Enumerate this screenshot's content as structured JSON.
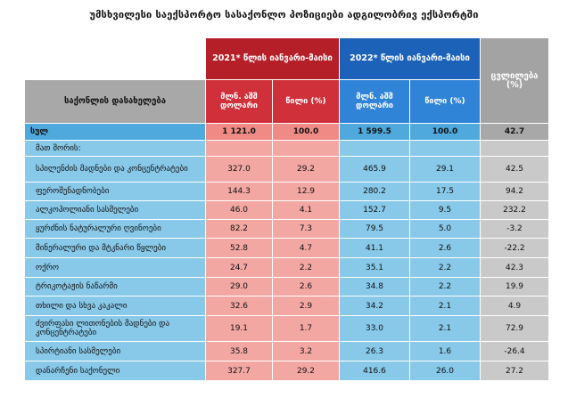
{
  "title": "უმსხვილესი საექსპორტო სასაქონლო პოზიციები ადგილობრივ ექსპორტში",
  "header": {
    "period_2021": "2021* წლის იანვარი-მაისი",
    "period_2022": "2022* წლის იანვარი-მაისი",
    "change": "ცვლილება (%)",
    "product_name": "საქონლის დასახელება",
    "value_usd_2021": "მლნ. აშშ დოლარი",
    "share_2021": "წილი (%)",
    "value_usd_2022": "მლნ. აშშ დოლარი",
    "share_2022": "წილი (%)"
  },
  "colors": {
    "period_2021": "#b52028",
    "period_2022": "#1c62b8",
    "row_2021": "#f3a7a3",
    "row_2022": "#88c8e8",
    "change": "#c9c9c9"
  },
  "chart_data": {
    "type": "table",
    "title": "უმსხვილესი საექსპორტო სასაქონლო პოზიციები ადგილობრივ ექსპორტში",
    "columns": [
      "საქონლის დასახელება",
      "2021* მლნ. აშშ დოლარი",
      "2021* წილი (%)",
      "2022* მლნ. აშშ დოლარი",
      "2022* წილი (%)",
      "ცვლილება (%)"
    ],
    "total": {
      "name": "სულ",
      "v2021": "1 121.0",
      "s2021": "100.0",
      "v2022": "1 599.5",
      "s2022": "100.0",
      "change": "42.7"
    },
    "note": "მათ შორის:",
    "rows": [
      {
        "name": "სპილენძის მადნები და კონცენტრატები",
        "v2021": "327.0",
        "s2021": "29.2",
        "v2022": "465.9",
        "s2022": "29.1",
        "change": "42.5"
      },
      {
        "name": "ფეროშენადნობები",
        "v2021": "144.3",
        "s2021": "12.9",
        "v2022": "280.2",
        "s2022": "17.5",
        "change": "94.2"
      },
      {
        "name": "ალკოჰოლიანი სასმელები",
        "v2021": "46.0",
        "s2021": "4.1",
        "v2022": "152.7",
        "s2022": "9.5",
        "change": "232.2"
      },
      {
        "name": "ყურძნის ნატურალური ღვინოები",
        "v2021": "82.2",
        "s2021": "7.3",
        "v2022": "79.5",
        "s2022": "5.0",
        "change": "-3.2"
      },
      {
        "name": "მინერალური და მტკნარი წყლები",
        "v2021": "52.8",
        "s2021": "4.7",
        "v2022": "41.1",
        "s2022": "2.6",
        "change": "-22.2"
      },
      {
        "name": "ოქრო",
        "v2021": "24.7",
        "s2021": "2.2",
        "v2022": "35.1",
        "s2022": "2.2",
        "change": "42.3"
      },
      {
        "name": "ტრიკოტაჟის ნაწარმი",
        "v2021": "29.0",
        "s2021": "2.6",
        "v2022": "34.8",
        "s2022": "2.2",
        "change": "19.9"
      },
      {
        "name": "თხილი და სხვა კაკალი",
        "v2021": "32.6",
        "s2021": "2.9",
        "v2022": "34.2",
        "s2022": "2.1",
        "change": "4.9"
      },
      {
        "name": "ძვირფასი ლითონების მადნები და კონცენტრატები",
        "v2021": "19.1",
        "s2021": "1.7",
        "v2022": "33.0",
        "s2022": "2.1",
        "change": "72.9"
      },
      {
        "name": "სპირტიანი სასმელები",
        "v2021": "35.8",
        "s2021": "3.2",
        "v2022": "26.3",
        "s2022": "1.6",
        "change": "-26.4"
      },
      {
        "name": "დანარჩენი საქონელი",
        "v2021": "327.7",
        "s2021": "29.2",
        "v2022": "416.6",
        "s2022": "26.0",
        "change": "27.2"
      }
    ]
  }
}
